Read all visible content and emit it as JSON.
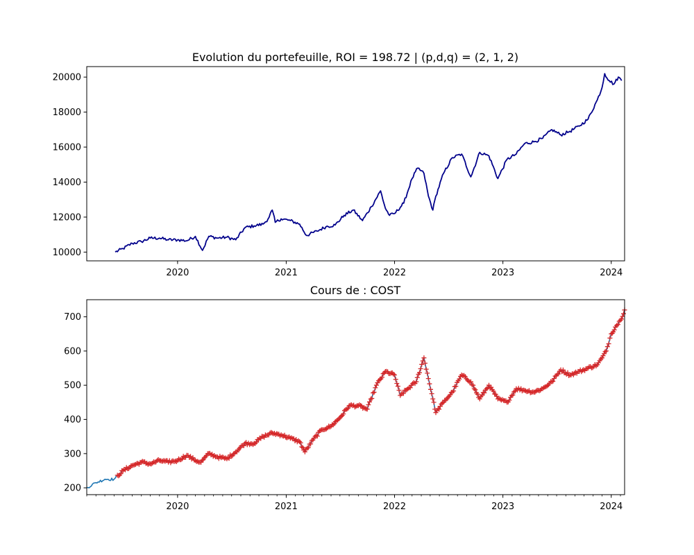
{
  "chart_data": [
    {
      "type": "line",
      "title": "Evolution du portefeuille, ROI = 198.72  |  (p,d,q) = (2, 1, 2)",
      "xlabel": "",
      "ylabel": "",
      "xlim": [
        "2019-03-01",
        "2024-02-15"
      ],
      "ylim": [
        9500,
        20600
      ],
      "grid": false,
      "x_tick_labels": [
        "2020",
        "2021",
        "2022",
        "2023",
        "2024"
      ],
      "x_tick_values": [
        "2020-01-01",
        "2021-01-01",
        "2022-01-01",
        "2023-01-01",
        "2024-01-01"
      ],
      "y_tick_labels": [
        "10000",
        "12000",
        "14000",
        "16000",
        "18000",
        "20000"
      ],
      "y_tick_values": [
        10000,
        12000,
        14000,
        16000,
        18000,
        20000
      ],
      "line_color": "#00008b",
      "series": [
        {
          "x": [
            "2019-06-05",
            "2019-07-01",
            "2019-08-01",
            "2019-09-01",
            "2019-10-01",
            "2019-11-01",
            "2019-12-01",
            "2020-01-01",
            "2020-02-01",
            "2020-03-01",
            "2020-03-25",
            "2020-04-15",
            "2020-05-15",
            "2020-06-15",
            "2020-07-15",
            "2020-08-15",
            "2020-09-15",
            "2020-10-15",
            "2020-11-01",
            "2020-11-15",
            "2020-11-25",
            "2020-12-15",
            "2021-01-15",
            "2021-02-15",
            "2021-03-10",
            "2021-04-15",
            "2021-05-15",
            "2021-06-15",
            "2021-07-15",
            "2021-08-15",
            "2021-09-15",
            "2021-10-15",
            "2021-11-15",
            "2021-12-01",
            "2021-12-15",
            "2022-01-01",
            "2022-02-01",
            "2022-03-01",
            "2022-03-20",
            "2022-04-10",
            "2022-04-25",
            "2022-05-10",
            "2022-05-20",
            "2022-06-15",
            "2022-07-15",
            "2022-08-15",
            "2022-09-15",
            "2022-10-15",
            "2022-11-15",
            "2022-12-15",
            "2023-01-15",
            "2023-02-15",
            "2023-03-15",
            "2023-04-15",
            "2023-05-15",
            "2023-06-15",
            "2023-07-15",
            "2023-08-15",
            "2023-09-15",
            "2023-10-15",
            "2023-11-15",
            "2023-12-01",
            "2023-12-10",
            "2023-12-25",
            "2024-01-10",
            "2024-01-25",
            "2024-02-05"
          ],
          "y": [
            10000,
            10200,
            10500,
            10600,
            10800,
            10800,
            10700,
            10700,
            10650,
            10900,
            10100,
            10900,
            10800,
            10850,
            10700,
            11400,
            11500,
            11600,
            11900,
            12400,
            11700,
            11900,
            11800,
            11600,
            10950,
            11200,
            11450,
            11550,
            12100,
            12400,
            11800,
            12600,
            13500,
            12500,
            12100,
            12200,
            12800,
            14200,
            14800,
            14500,
            13200,
            12400,
            13200,
            14500,
            15400,
            15600,
            14300,
            15700,
            15500,
            14200,
            15300,
            15600,
            16200,
            16300,
            16500,
            17000,
            16700,
            16900,
            17200,
            17600,
            18700,
            19400,
            20200,
            19800,
            19600,
            20000,
            19800
          ]
        }
      ]
    },
    {
      "type": "line",
      "title": "Cours de : COST",
      "xlabel": "",
      "ylabel": "",
      "xlim": [
        "2019-03-01",
        "2024-02-15"
      ],
      "ylim": [
        180,
        750
      ],
      "grid": false,
      "x_tick_labels": [
        "2020",
        "2021",
        "2022",
        "2023",
        "2024"
      ],
      "x_tick_values": [
        "2020-01-01",
        "2021-01-01",
        "2022-01-01",
        "2023-01-01",
        "2024-01-01"
      ],
      "y_tick_labels": [
        "200",
        "300",
        "400",
        "500",
        "600",
        "700"
      ],
      "y_tick_values": [
        200,
        300,
        400,
        500,
        600,
        700
      ],
      "line_color": "#1f77b4",
      "marker_color": "#d62728",
      "marker": "+",
      "marker_start": "2019-06-10",
      "series": [
        {
          "x": [
            "2019-03-01",
            "2019-04-01",
            "2019-05-01",
            "2019-06-01",
            "2019-07-01",
            "2019-08-01",
            "2019-09-01",
            "2019-10-01",
            "2019-11-01",
            "2019-12-01",
            "2020-01-01",
            "2020-02-01",
            "2020-03-01",
            "2020-03-20",
            "2020-04-15",
            "2020-05-15",
            "2020-06-15",
            "2020-07-15",
            "2020-08-15",
            "2020-09-15",
            "2020-10-15",
            "2020-11-15",
            "2020-12-15",
            "2021-01-15",
            "2021-02-15",
            "2021-03-05",
            "2021-04-01",
            "2021-05-01",
            "2021-06-01",
            "2021-07-01",
            "2021-08-01",
            "2021-09-01",
            "2021-10-01",
            "2021-11-01",
            "2021-12-01",
            "2022-01-01",
            "2022-01-20",
            "2022-02-15",
            "2022-03-15",
            "2022-04-10",
            "2022-05-10",
            "2022-05-20",
            "2022-06-15",
            "2022-07-15",
            "2022-08-15",
            "2022-09-15",
            "2022-10-15",
            "2022-11-15",
            "2022-12-15",
            "2023-01-15",
            "2023-02-15",
            "2023-03-15",
            "2023-04-15",
            "2023-05-15",
            "2023-06-15",
            "2023-07-15",
            "2023-08-15",
            "2023-09-15",
            "2023-10-15",
            "2023-11-15",
            "2023-12-01",
            "2023-12-15",
            "2024-01-01",
            "2024-01-15",
            "2024-02-01",
            "2024-02-15"
          ],
          "y": [
            200,
            215,
            225,
            225,
            250,
            265,
            275,
            270,
            280,
            275,
            280,
            295,
            280,
            275,
            300,
            290,
            285,
            305,
            330,
            330,
            350,
            360,
            355,
            345,
            335,
            305,
            340,
            370,
            380,
            405,
            440,
            440,
            430,
            500,
            540,
            530,
            470,
            490,
            510,
            580,
            460,
            420,
            450,
            480,
            530,
            510,
            460,
            500,
            460,
            450,
            490,
            485,
            480,
            490,
            510,
            545,
            530,
            540,
            550,
            560,
            580,
            600,
            650,
            670,
            690,
            720
          ]
        }
      ]
    }
  ]
}
